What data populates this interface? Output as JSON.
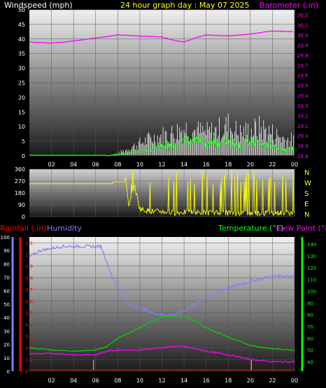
{
  "header": {
    "windspeed_label": "Windspeed (mph)",
    "title": "24 hour graph day : May 07 2025",
    "barometer_label": "Barometer (.in)"
  },
  "lower_header": {
    "rainfall_label": "Rainfall (.in)",
    "humidity_label": "Humidity",
    "temperature_label": "Temperature (°F)",
    "dewpoint_label": "Dew Point (°F)"
  },
  "colors": {
    "windspeed": "#ffffff",
    "windgust": "#00ff00",
    "barometer": "#ff00ff",
    "direction": "#ffff00",
    "rainfall": "#ff0000",
    "humidity": "#8080ff",
    "temperature": "#00d000",
    "dewpoint": "#ff00ff",
    "title": "#ffff00"
  },
  "chart_data": [
    {
      "type": "line",
      "name": "wind-barometer",
      "x_ticks": [
        "02",
        "04",
        "06",
        "08",
        "10",
        "12",
        "14",
        "16",
        "18",
        "20",
        "22",
        "00"
      ],
      "left_axis": {
        "label": "Windspeed (mph)",
        "ticks": [
          0,
          5,
          10,
          15,
          20,
          25,
          30,
          35,
          40,
          45,
          50
        ],
        "ylim": [
          0,
          50
        ]
      },
      "right_axis": {
        "label": "Barometer (.in)",
        "ticks": [
          "28.8",
          "28.9",
          "29.0",
          "29.1",
          "29.2",
          "29.3",
          "29.4",
          "29.5",
          "29.6",
          "29.7",
          "29.8",
          "29.9",
          "30.0",
          "30.1",
          "30.2"
        ],
        "ylim": [
          28.8,
          30.25
        ]
      },
      "series": [
        {
          "name": "Barometer",
          "axis": "right",
          "x": [
            0,
            2,
            4,
            6,
            8,
            10,
            12,
            13,
            14,
            15,
            16,
            18,
            20,
            22,
            24
          ],
          "values": [
            29.93,
            29.92,
            29.94,
            29.97,
            30.0,
            29.99,
            29.98,
            29.95,
            29.93,
            29.97,
            30.0,
            29.99,
            30.01,
            30.04,
            30.03
          ]
        },
        {
          "name": "Windspeed",
          "axis": "left",
          "x": [
            0,
            7,
            8,
            9,
            10,
            11,
            12,
            13,
            14,
            15,
            16,
            17,
            18,
            19,
            20,
            21,
            22,
            23,
            24
          ],
          "values": [
            0,
            0,
            0.5,
            1,
            2,
            3,
            4,
            5,
            6,
            6,
            5,
            6,
            7,
            5,
            6,
            5,
            4,
            3,
            3
          ]
        },
        {
          "name": "Gust",
          "axis": "left",
          "x": [
            0,
            7,
            8,
            9,
            10,
            11,
            12,
            13,
            14,
            15,
            16,
            17,
            18,
            19,
            20,
            21,
            22,
            23,
            24
          ],
          "values": [
            0,
            0,
            1,
            3,
            5,
            7,
            8,
            9,
            11,
            10,
            9,
            10,
            12,
            9,
            10,
            11,
            9,
            7,
            6
          ]
        }
      ]
    },
    {
      "type": "line",
      "name": "wind-direction",
      "x_ticks": [
        "02",
        "04",
        "06",
        "08",
        "10",
        "12",
        "14",
        "16",
        "18",
        "20",
        "22",
        "00"
      ],
      "left_axis": {
        "ticks": [
          0,
          90,
          180,
          270,
          360
        ],
        "ylim": [
          0,
          360
        ]
      },
      "right_labels": [
        "N",
        "W",
        "S",
        "E",
        "N"
      ],
      "series": [
        {
          "name": "Direction",
          "x": [
            0,
            7.5,
            7.6,
            8.6,
            8.7,
            9.0,
            9.5,
            10,
            11,
            12,
            13,
            14,
            16,
            18,
            20,
            22,
            24
          ],
          "values": [
            250,
            250,
            265,
            265,
            300,
            80,
            240,
            60,
            40,
            40,
            30,
            35,
            30,
            30,
            25,
            30,
            30
          ]
        }
      ]
    },
    {
      "type": "line",
      "name": "temp-humidity-rain",
      "x_ticks": [
        "02",
        "04",
        "06",
        "08",
        "10",
        "12",
        "14",
        "16",
        "18",
        "20",
        "22",
        "00"
      ],
      "humidity_axis": {
        "ticks": [
          0,
          10,
          20,
          30,
          40,
          50,
          60,
          70,
          80,
          90,
          100
        ],
        "ylim": [
          0,
          100
        ]
      },
      "rain_axis": {
        "ticks": [
          "0",
          "0.1",
          "0.2",
          "0.3",
          "0.4",
          "0.5",
          "0.6",
          "0.7",
          "0.8",
          "0.9",
          "1",
          "1.1"
        ],
        "ylim": [
          0,
          1.15
        ]
      },
      "temp_axis": {
        "ticks": [
          40,
          50,
          60,
          70,
          80,
          90,
          100,
          110,
          120,
          130,
          140
        ],
        "ylim": [
          32,
          146
        ]
      },
      "series": [
        {
          "name": "Humidity",
          "axis": "humidity",
          "x": [
            0,
            1,
            3,
            5,
            6.5,
            7.5,
            9,
            11,
            12,
            13,
            14,
            16,
            18,
            20,
            22,
            24
          ],
          "values": [
            85,
            90,
            93,
            93,
            93,
            70,
            50,
            44,
            42,
            42,
            45,
            55,
            62,
            67,
            71,
            71
          ]
        },
        {
          "name": "Temperature",
          "axis": "temp",
          "x": [
            0,
            2,
            4,
            6,
            7,
            8,
            10,
            11,
            12,
            13,
            14,
            15,
            16,
            18,
            20,
            22,
            24
          ],
          "values": [
            52,
            50,
            49,
            50,
            53,
            60,
            69,
            74,
            78,
            79,
            79,
            75,
            69,
            61,
            54,
            51,
            50
          ]
        },
        {
          "name": "Dew Point",
          "axis": "temp",
          "x": [
            0,
            2,
            4,
            6,
            7,
            8,
            10,
            12,
            13,
            14,
            15,
            16,
            18,
            20,
            22,
            24
          ],
          "values": [
            47,
            47,
            46,
            46,
            49,
            50,
            50,
            52,
            53,
            53,
            51,
            49,
            46,
            42,
            40,
            40
          ]
        },
        {
          "name": "Rainfall",
          "axis": "rain",
          "x": [
            0,
            24
          ],
          "values": [
            0,
            0
          ]
        }
      ],
      "rain_ticks_x": [
        5.8,
        20.1
      ]
    }
  ]
}
